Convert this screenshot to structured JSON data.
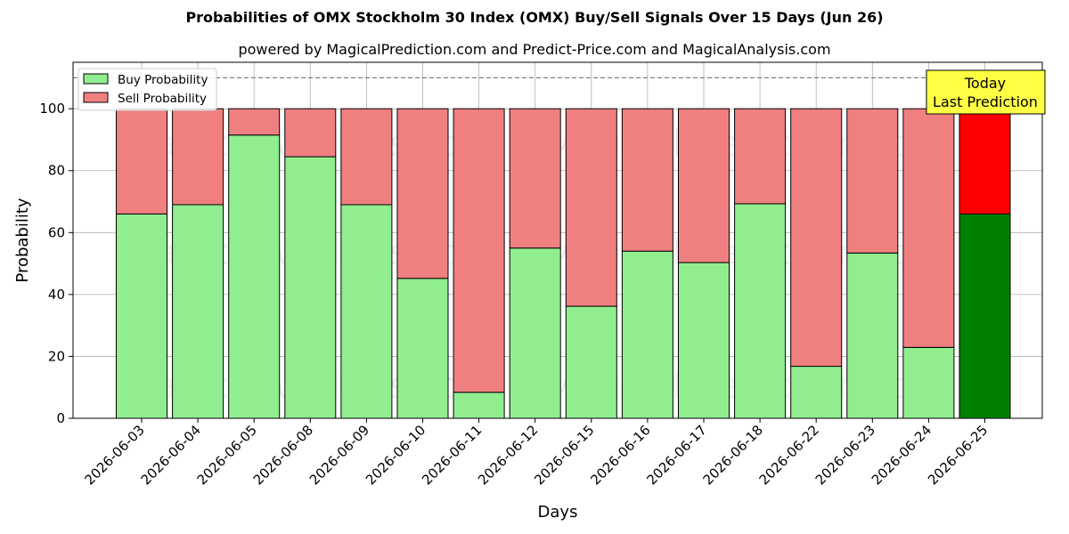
{
  "title": "Probabilities of OMX Stockholm 30 Index (OMX) Buy/Sell Signals Over 15 Days (Jun 26)",
  "subtitle": "powered by MagicalPrediction.com and Predict-Price.com and MagicalAnalysis.com",
  "watermarks": [
    "MagicalAnalysis.com",
    "MagicalPrediction.com"
  ],
  "colors": {
    "buy": "#90ee90",
    "sell": "#f08080",
    "buy_highlight": "#008000",
    "sell_highlight": "#ff0000",
    "annotation_bg": "#ffff44",
    "grid": "#b0b0b0",
    "reference_line": "#808080"
  },
  "chart_data": {
    "type": "bar",
    "stacked": true,
    "xlabel": "Days",
    "ylabel": "Probability",
    "ylim": [
      0,
      115
    ],
    "yticks": [
      0,
      20,
      40,
      60,
      80,
      100
    ],
    "grid": true,
    "legend_position": "top-left",
    "reference_line_y": 110,
    "categories": [
      "2026-06-03",
      "2026-06-04",
      "2026-06-05",
      "2026-06-08",
      "2026-06-09",
      "2026-06-10",
      "2026-06-11",
      "2026-06-12",
      "2026-06-15",
      "2026-06-16",
      "2026-06-17",
      "2026-06-18",
      "2026-06-22",
      "2026-06-23",
      "2026-06-24",
      "2026-06-25"
    ],
    "series": [
      {
        "name": "Buy Probability",
        "values": [
          66,
          69,
          91.5,
          84.5,
          69,
          45.2,
          8.4,
          55,
          36.2,
          54,
          50.3,
          69.3,
          16.8,
          53.4,
          22.9,
          66
        ]
      },
      {
        "name": "Sell Probability",
        "values": [
          34,
          31,
          8.5,
          15.5,
          31,
          54.8,
          91.6,
          45,
          63.8,
          46,
          49.7,
          30.7,
          83.2,
          46.6,
          77.1,
          34
        ]
      }
    ],
    "highlight_index": 15,
    "annotation": {
      "line1": "Today",
      "line2": "Last Prediction"
    }
  }
}
